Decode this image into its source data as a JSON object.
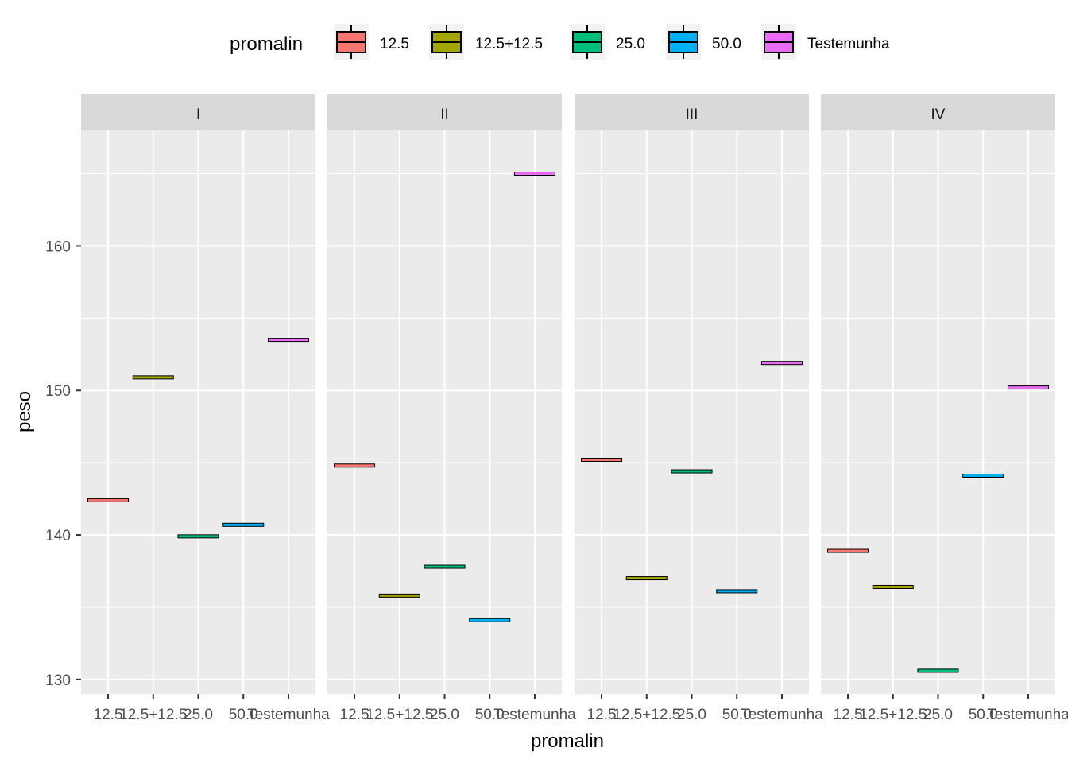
{
  "chart_data": {
    "type": "boxplot",
    "facet_variable": "",
    "facets": [
      "I",
      "II",
      "III",
      "IV"
    ],
    "categories": [
      "12.5",
      "12.5+12.5",
      "25.0",
      "50.0",
      "Testemunha"
    ],
    "xlabel": "promalin",
    "ylabel": "peso",
    "ylim": [
      129,
      168
    ],
    "yticks": [
      130,
      140,
      150,
      160
    ],
    "grid": true,
    "legend": {
      "title": "promalin",
      "placement": "top",
      "entries": [
        "12.5",
        "12.5+12.5",
        "25.0",
        "50.0",
        "Testemunha"
      ],
      "colors": [
        "#F8766D",
        "#A3A500",
        "#00BF7D",
        "#00B0F6",
        "#E76BF3"
      ]
    },
    "series": [
      {
        "facet": "I",
        "values": [
          142.4,
          150.9,
          139.9,
          140.7,
          153.5
        ]
      },
      {
        "facet": "II",
        "values": [
          144.8,
          135.8,
          137.8,
          134.1,
          165.0
        ]
      },
      {
        "facet": "III",
        "values": [
          145.2,
          137.0,
          144.4,
          136.1,
          151.9
        ]
      },
      {
        "facet": "IV",
        "values": [
          138.9,
          136.4,
          130.6,
          144.1,
          150.2
        ]
      }
    ]
  }
}
